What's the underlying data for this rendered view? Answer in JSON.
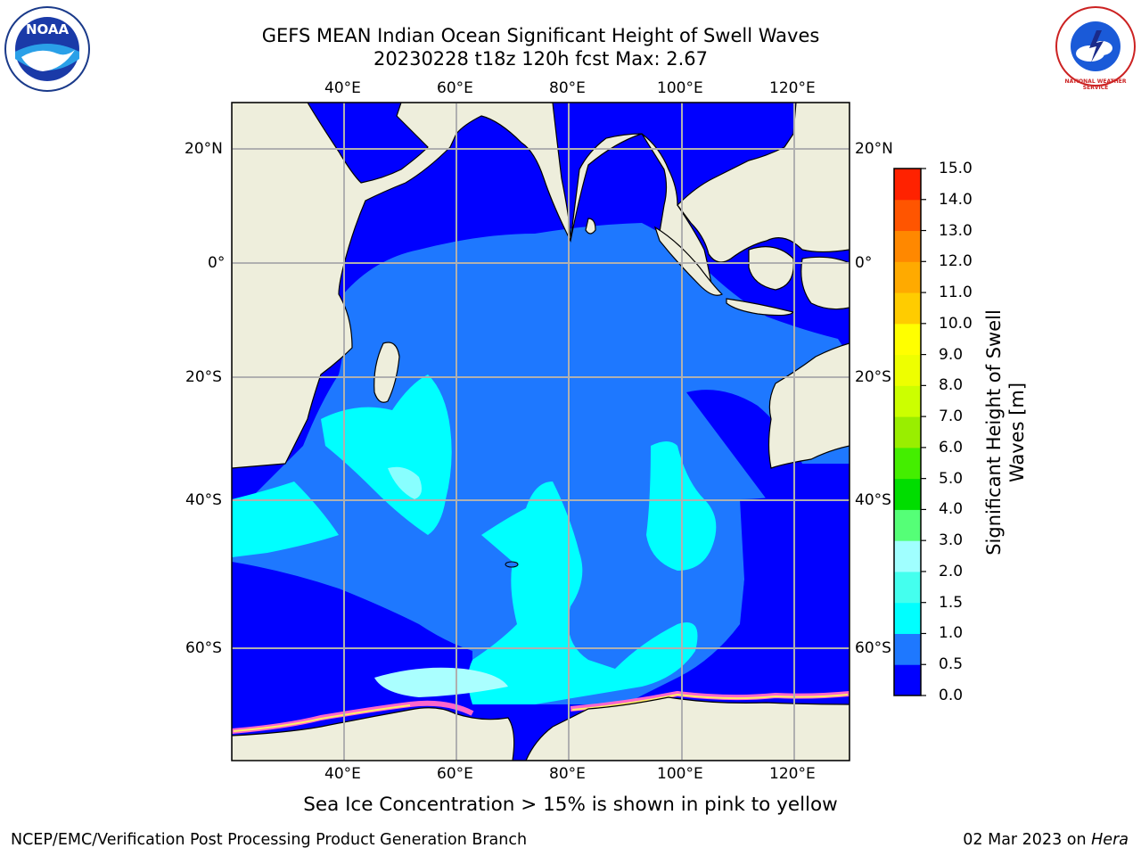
{
  "title_line1": "GEFS MEAN Indian Ocean Significant Height of Swell Waves",
  "title_line2": "20230228 t18z 120h fcst   Max: 2.67",
  "lon_labels": [
    "40°E",
    "60°E",
    "80°E",
    "100°E",
    "120°E"
  ],
  "lat_labels_left": [
    "20°N",
    "0°",
    "20°S",
    "40°S",
    "60°S"
  ],
  "lat_labels_right": [
    "20°N",
    "0°",
    "20°S",
    "40°S",
    "60°S"
  ],
  "colorbar": {
    "label_line1": "Significant Height of Swell",
    "label_line2": "Waves [m]",
    "ticks": [
      "0.0",
      "0.5",
      "1.0",
      "1.5",
      "2.0",
      "3.0",
      "4.0",
      "5.0",
      "6.0",
      "7.0",
      "8.0",
      "9.0",
      "10.0",
      "11.0",
      "12.0",
      "13.0",
      "14.0",
      "15.0"
    ],
    "colors": [
      "#0000ff",
      "#1e78ff",
      "#00ffff",
      "#44ffee",
      "#a0ffff",
      "#55ff77",
      "#00dd00",
      "#44ee00",
      "#99ee00",
      "#ccff00",
      "#eeff00",
      "#ffff00",
      "#ffcc00",
      "#ffaa00",
      "#ff8800",
      "#ff5500",
      "#ff2200",
      "#ff0000"
    ]
  },
  "ice_note": "Sea Ice Concentration > 15% is shown in pink to yellow",
  "footer_left": "NCEP/EMC/Verification Post Processing Product Generation Branch",
  "footer_right_date": "02 Mar 2023 on ",
  "footer_right_machine": "Hera",
  "logo_left": "NOAA",
  "logo_right": "NATIONAL WEATHER SERVICE",
  "colors": {
    "land": "#eeeedc",
    "deep_blue": "#0000ff",
    "mid_blue": "#1e78ff",
    "cyan": "#00ffff",
    "light_cyan": "#aaffff"
  }
}
